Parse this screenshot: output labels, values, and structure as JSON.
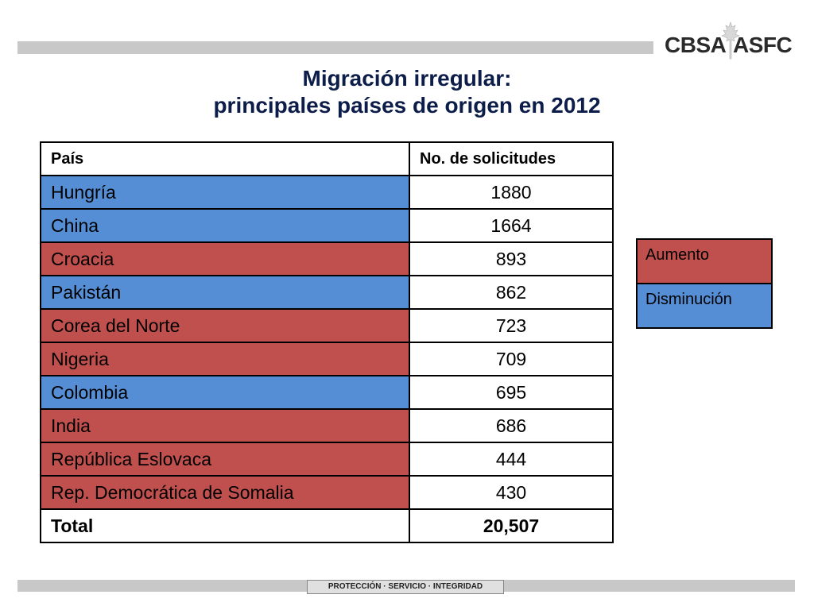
{
  "header": {
    "logo_left": "CBSA",
    "logo_right": "ASFC",
    "logo_icon": "maple-leaf-icon"
  },
  "title": {
    "line1": "Migración irregular:",
    "line2": "principales países de origen en 2012"
  },
  "table": {
    "headers": [
      "País",
      "No. de solicitudes"
    ],
    "rows": [
      {
        "country": "Hungría",
        "count": "1880",
        "trend": "down"
      },
      {
        "country": "China",
        "count": "1664",
        "trend": "down"
      },
      {
        "country": "Croacia",
        "count": "893",
        "trend": "up"
      },
      {
        "country": "Pakistán",
        "count": "862",
        "trend": "down"
      },
      {
        "country": "Corea del Norte",
        "count": "723",
        "trend": "up"
      },
      {
        "country": "Nigeria",
        "count": "709",
        "trend": "up"
      },
      {
        "country": "Colombia",
        "count": "695",
        "trend": "down"
      },
      {
        "country": "India",
        "count": "686",
        "trend": "up"
      },
      {
        "country": "República Eslovaca",
        "count": "444",
        "trend": "up"
      },
      {
        "country": "Rep. Democrática de Somalia",
        "count": "430",
        "trend": "up"
      }
    ],
    "total_label": "Total",
    "total_value": "20,507"
  },
  "legend": {
    "increase": "Aumento",
    "decrease": "Disminución"
  },
  "colors": {
    "increase": "#c0504d",
    "decrease": "#558ed5",
    "title": "#0d1d4a"
  },
  "footer": {
    "motto": "PROTECCIÓN · SERVICIO · INTEGRIDAD"
  }
}
